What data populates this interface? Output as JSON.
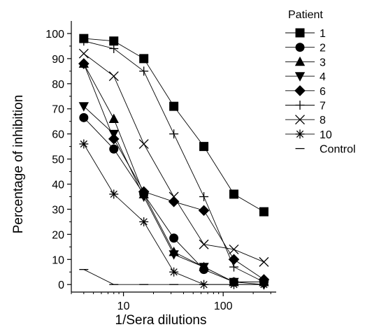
{
  "chart_data": {
    "type": "line",
    "title": "",
    "xlabel": "1/Sera dilutions",
    "ylabel": "Percentage of inhibition",
    "xscale": "log",
    "xlim": [
      3,
      340
    ],
    "ylim": [
      -3,
      105
    ],
    "x_ticks": [
      10,
      100
    ],
    "x_tick_labels": [
      "10",
      "100"
    ],
    "y_ticks": [
      0,
      10,
      20,
      30,
      40,
      50,
      60,
      70,
      80,
      90,
      100
    ],
    "y_tick_labels": [
      "0",
      "10",
      "20",
      "30",
      "40",
      "50",
      "60",
      "70",
      "80",
      "90",
      "100"
    ],
    "grid": false,
    "legend_title": "Patient",
    "legend_position": "top-right",
    "x": [
      4,
      8,
      16,
      32,
      64,
      128,
      256
    ],
    "series": [
      {
        "name": "1",
        "marker": "square",
        "values": [
          98,
          97,
          90,
          71,
          55,
          36,
          29
        ]
      },
      {
        "name": "2",
        "marker": "circle",
        "values": [
          66.5,
          54,
          36,
          18.5,
          6,
          1,
          1
        ]
      },
      {
        "name": "3",
        "marker": "triangle-up",
        "values": [
          88,
          66,
          36,
          13,
          7,
          1,
          1
        ]
      },
      {
        "name": "4",
        "marker": "triangle-down",
        "values": [
          71,
          60,
          35,
          12,
          7,
          1,
          0
        ]
      },
      {
        "name": "6",
        "marker": "diamond",
        "values": [
          88,
          58,
          37,
          33,
          29.5,
          10,
          2
        ]
      },
      {
        "name": "7",
        "marker": "plus",
        "values": [
          97,
          94,
          85,
          60,
          35,
          7,
          1
        ]
      },
      {
        "name": "8",
        "marker": "x",
        "values": [
          92,
          83,
          56,
          35,
          16,
          14,
          9
        ]
      },
      {
        "name": "10",
        "marker": "asterisk",
        "values": [
          56,
          36,
          25,
          5,
          0,
          0,
          0
        ]
      },
      {
        "name": "Control",
        "marker": "dash",
        "values": [
          6,
          0,
          0,
          0,
          0,
          0,
          0
        ]
      }
    ]
  }
}
